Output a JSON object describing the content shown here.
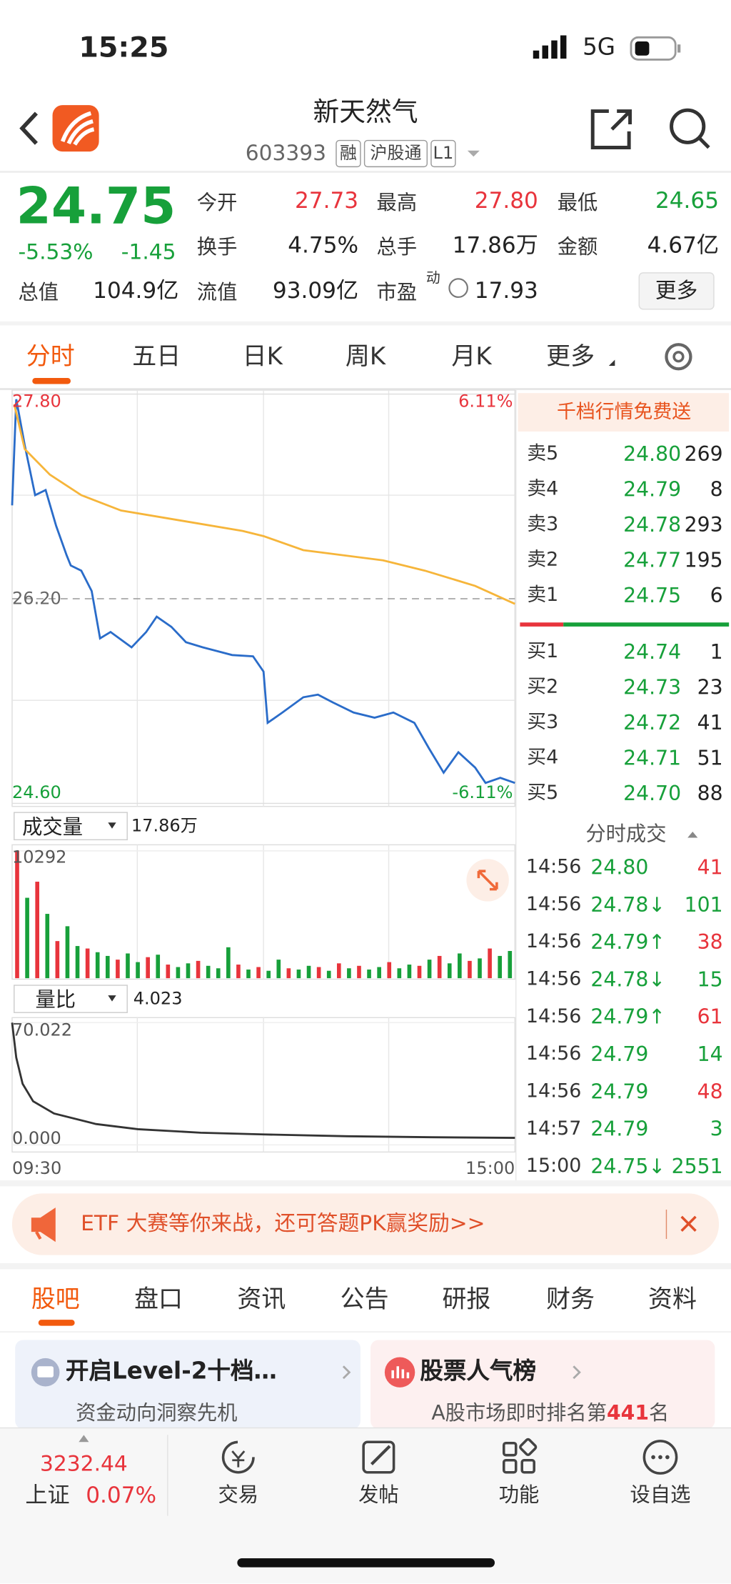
{
  "status_bar": {
    "time": "15:25",
    "network": "5G"
  },
  "header": {
    "name": "新天然气",
    "code": "603393",
    "tags": [
      "融",
      "沪股通",
      "L1"
    ]
  },
  "quote": {
    "price": "24.75",
    "change_pct": "-5.53%",
    "change": "-1.45",
    "color": "#17a03a",
    "stats": [
      [
        {
          "label": "今开",
          "value": "27.73",
          "color": "#e8343c"
        },
        {
          "label": "最高",
          "value": "27.80",
          "color": "#e8343c"
        },
        {
          "label": "最低",
          "value": "24.65",
          "color": "#17a03a"
        }
      ],
      [
        {
          "label": "换手",
          "value": "4.75%",
          "color": "#222222"
        },
        {
          "label": "总手",
          "value": "17.86万",
          "color": "#222222"
        },
        {
          "label": "金额",
          "value": "4.67亿",
          "color": "#222222"
        }
      ],
      [
        {
          "label": "总值",
          "value": "104.9亿",
          "color": "#222222"
        },
        {
          "label": "流值",
          "value": "93.09亿",
          "color": "#222222"
        },
        {
          "label": "市盈",
          "value": "17.93",
          "color": "#222222"
        }
      ]
    ],
    "pe_note": "动",
    "more": "更多"
  },
  "tabs": {
    "items": [
      "分时",
      "五日",
      "日K",
      "周K",
      "月K",
      "更多"
    ],
    "active": 0
  },
  "intraday": {
    "xlim": [
      0,
      240
    ],
    "xticks": [
      {
        "value": 0,
        "label": "09:30"
      },
      {
        "value": 240,
        "label": "15:00"
      }
    ],
    "price_chart": {
      "ylim": [
        24.6,
        27.8
      ],
      "yticks": [
        {
          "value": 27.8,
          "label": "27.80"
        },
        {
          "value": 26.2,
          "label": "26.20"
        },
        {
          "value": 24.6,
          "label": "24.60"
        }
      ],
      "ytick_colors": [
        "#e8343c",
        "#666666",
        "#17a03a"
      ],
      "pct_labels": [
        "6.11%",
        "-6.11%"
      ],
      "pct_colors": [
        "#e8343c",
        "#17a03a"
      ],
      "series": [
        {
          "color": "#2a6cc9",
          "x": [
            0,
            2,
            6,
            11,
            16,
            21,
            26,
            28,
            33,
            38,
            42,
            47,
            57,
            64,
            69,
            76,
            83,
            91,
            98,
            105,
            115,
            120,
            122,
            129,
            139,
            146,
            153,
            163,
            173,
            182,
            192,
            199,
            206,
            213,
            221,
            226,
            233,
            240
          ],
          "values": [
            26.93,
            27.76,
            27.4,
            27.01,
            27.05,
            26.77,
            26.54,
            26.46,
            26.42,
            26.26,
            25.89,
            25.94,
            25.82,
            25.94,
            26.06,
            25.98,
            25.86,
            25.82,
            25.79,
            25.76,
            25.75,
            25.63,
            25.23,
            25.31,
            25.43,
            25.45,
            25.39,
            25.31,
            25.27,
            25.31,
            25.23,
            25.03,
            24.84,
            25.0,
            24.88,
            24.76,
            24.8,
            24.76
          ]
        },
        {
          "color": "#f6b53a",
          "x": [
            1,
            6,
            18,
            33,
            52,
            81,
            110,
            120,
            139,
            177,
            197,
            221,
            240
          ],
          "values": [
            27.72,
            27.37,
            27.17,
            27.01,
            26.89,
            26.81,
            26.73,
            26.69,
            26.58,
            26.5,
            26.42,
            26.3,
            26.16
          ]
        }
      ]
    },
    "volume": {
      "label": "成交量",
      "total": "17.86万",
      "ylim": [
        0,
        10292
      ],
      "yticks": [
        10292
      ],
      "values": [
        10292,
        6500,
        7800,
        5200,
        3000,
        4200,
        2600,
        2400,
        2100,
        1800,
        1500,
        2000,
        1300,
        1700,
        1900,
        1100,
        900,
        1200,
        1400,
        1000,
        800,
        2500,
        1100,
        700,
        900,
        600,
        1500,
        800,
        700,
        1000,
        900,
        600,
        1200,
        800,
        1000,
        700,
        900,
        1300,
        800,
        1100,
        1000,
        1500,
        1800,
        1200,
        2000,
        1400,
        1600,
        2400,
        1800,
        2200
      ],
      "colors": [
        "#e8343c",
        "#17a03a",
        "#e8343c",
        "#17a03a",
        "#e8343c",
        "#17a03a",
        "#17a03a",
        "#e8343c",
        "#17a03a",
        "#17a03a",
        "#e8343c",
        "#17a03a",
        "#17a03a",
        "#e8343c",
        "#17a03a",
        "#e8343c",
        "#17a03a",
        "#17a03a",
        "#e8343c",
        "#17a03a",
        "#17a03a",
        "#17a03a",
        "#e8343c",
        "#17a03a",
        "#e8343c",
        "#17a03a",
        "#17a03a",
        "#e8343c",
        "#17a03a",
        "#17a03a",
        "#e8343c",
        "#17a03a",
        "#e8343c",
        "#17a03a",
        "#e8343c",
        "#17a03a",
        "#17a03a",
        "#e8343c",
        "#17a03a",
        "#17a03a",
        "#e8343c",
        "#17a03a",
        "#e8343c",
        "#17a03a",
        "#17a03a",
        "#e8343c",
        "#17a03a",
        "#e8343c",
        "#17a03a",
        "#17a03a"
      ]
    },
    "ratio": {
      "label": "量比",
      "value": "4.023",
      "ylim": [
        0,
        70.022
      ],
      "yticks": [
        70.022,
        {
          "value": 0,
          "label": "0.000"
        }
      ],
      "color": "#333333",
      "x": [
        0,
        2,
        5,
        10,
        20,
        40,
        60,
        90,
        120,
        160,
        200,
        240
      ],
      "values": [
        70.022,
        50,
        35,
        25,
        18,
        12,
        9,
        7,
        6,
        5,
        4.4,
        4.023
      ]
    }
  },
  "order_book": {
    "promo": "千档行情免费送",
    "asks": [
      {
        "label": "卖5",
        "price": "24.80",
        "volume": "269"
      },
      {
        "label": "卖4",
        "price": "24.79",
        "volume": "8"
      },
      {
        "label": "卖3",
        "price": "24.78",
        "volume": "293"
      },
      {
        "label": "卖2",
        "price": "24.77",
        "volume": "195"
      },
      {
        "label": "卖1",
        "price": "24.75",
        "volume": "6"
      }
    ],
    "bids": [
      {
        "label": "买1",
        "price": "24.74",
        "volume": "1"
      },
      {
        "label": "买2",
        "price": "24.73",
        "volume": "23"
      },
      {
        "label": "买3",
        "price": "24.72",
        "volume": "41"
      },
      {
        "label": "买4",
        "price": "24.71",
        "volume": "51"
      },
      {
        "label": "买5",
        "price": "24.70",
        "volume": "88"
      }
    ]
  },
  "trades": {
    "title": "分时成交",
    "rows": [
      {
        "time": "14:56",
        "price": "24.80",
        "volume": "41",
        "color": "#e8343c"
      },
      {
        "time": "14:56",
        "price": "24.78↓",
        "volume": "101",
        "color": "#17a03a"
      },
      {
        "time": "14:56",
        "price": "24.79↑",
        "volume": "38",
        "color": "#e8343c"
      },
      {
        "time": "14:56",
        "price": "24.78↓",
        "volume": "15",
        "color": "#17a03a"
      },
      {
        "time": "14:56",
        "price": "24.79↑",
        "volume": "61",
        "color": "#e8343c"
      },
      {
        "time": "14:56",
        "price": "24.79",
        "volume": "14",
        "color": "#17a03a"
      },
      {
        "time": "14:56",
        "price": "24.79",
        "volume": "48",
        "color": "#e8343c"
      },
      {
        "time": "14:57",
        "price": "24.79",
        "volume": "3",
        "color": "#17a03a"
      },
      {
        "time": "15:00",
        "price": "24.75↓",
        "volume": "2551",
        "color": "#17a03a"
      }
    ]
  },
  "banner": {
    "text": "ETF 大赛等你来战，还可答题PK赢奖励>>"
  },
  "sections": {
    "items": [
      "股吧",
      "盘口",
      "资讯",
      "公告",
      "研报",
      "财务",
      "资料"
    ],
    "active": 0
  },
  "cards": [
    {
      "title": "开启Level-2十档…",
      "subtitle": "资金动向洞察先机"
    },
    {
      "title": "股票人气榜",
      "subtitle_parts": [
        "A股市场即时排名第",
        "441",
        "名"
      ]
    }
  ],
  "bottom_nav": {
    "index_value": "3232.44",
    "index_name": "上证",
    "index_change": "0.07%",
    "items": [
      "交易",
      "发帖",
      "功能",
      "设自选"
    ]
  }
}
